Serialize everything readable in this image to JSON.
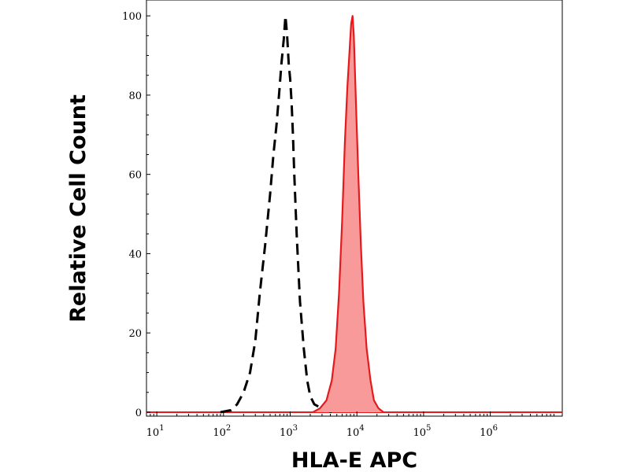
{
  "chart_data": {
    "type": "area",
    "xlabel": "HLA-E APC",
    "ylabel": "Relative Cell Count",
    "xscale": "log",
    "xlim": [
      7,
      12000000
    ],
    "ylim": [
      -1,
      104
    ],
    "grid": false,
    "legend": "none",
    "x_ticks": [
      {
        "value": 10,
        "base": "10",
        "exp": "1"
      },
      {
        "value": 100,
        "base": "10",
        "exp": "2"
      },
      {
        "value": 1000,
        "base": "10",
        "exp": "3"
      },
      {
        "value": 10000,
        "base": "10",
        "exp": "4"
      },
      {
        "value": 100000,
        "base": "10",
        "exp": "5"
      },
      {
        "value": 1000000,
        "base": "10",
        "exp": "6"
      }
    ],
    "y_ticks": [
      0,
      20,
      40,
      60,
      80,
      100
    ],
    "series": [
      {
        "style": "dashed",
        "color": "#000000",
        "fill": "none",
        "x": [
          90,
          130,
          160,
          200,
          250,
          300,
          350,
          420,
          500,
          560,
          620,
          680,
          740,
          800,
          850,
          900,
          950,
          1000,
          1050,
          1100,
          1150,
          1250,
          1400,
          1600,
          1800,
          2000,
          2300,
          2600,
          3000,
          3400,
          3800,
          4200
        ],
        "y": [
          0,
          0.5,
          2,
          5,
          10,
          18,
          30,
          42,
          55,
          65,
          72,
          80,
          88,
          94,
          100,
          95,
          88,
          84,
          78,
          70,
          60,
          45,
          28,
          16,
          8,
          4,
          2,
          1.5,
          1,
          0.8,
          0.3,
          0
        ]
      },
      {
        "style": "solid",
        "color": "#e41a1c",
        "fill": "#f99a9a",
        "x": [
          2200,
          2800,
          3500,
          4200,
          4800,
          5400,
          6000,
          6600,
          7200,
          7800,
          8200,
          8600,
          9000,
          9400,
          9800,
          10500,
          11500,
          12500,
          14000,
          16000,
          18000,
          21000,
          25000
        ],
        "y": [
          0,
          1,
          3,
          8,
          16,
          30,
          48,
          68,
          82,
          92,
          98,
          100,
          95,
          85,
          75,
          60,
          42,
          28,
          16,
          8,
          3,
          1,
          0
        ]
      }
    ]
  }
}
